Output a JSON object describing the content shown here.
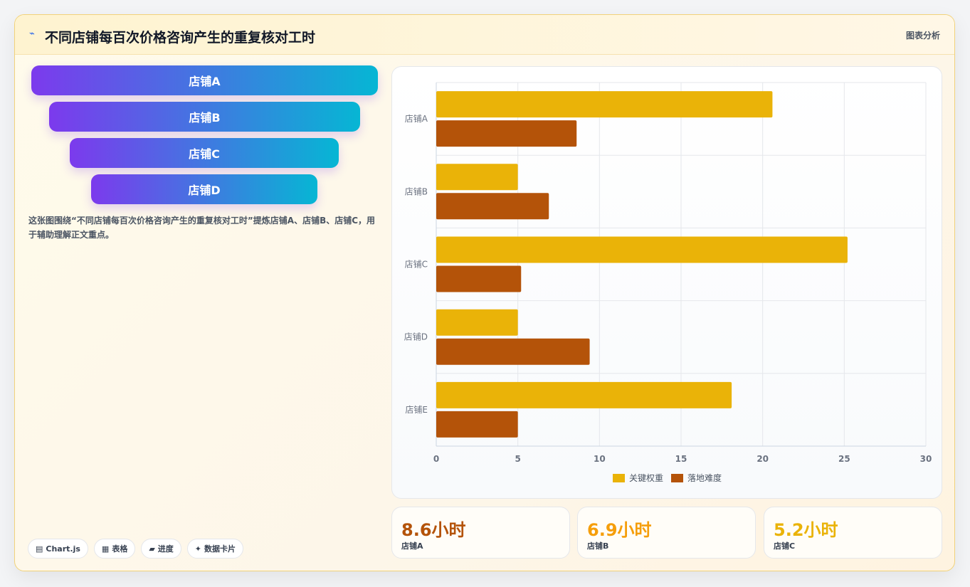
{
  "header": {
    "title": "不同店铺每百次价格咨询产生的重复核对工时",
    "tag": "图表分析",
    "icon": "trend-line-icon"
  },
  "funnel": {
    "stages": [
      "店铺A",
      "店铺B",
      "店铺C",
      "店铺D"
    ]
  },
  "description": "这张图围绕“不同店铺每百次价格咨询产生的重复核对工时”提炼店铺A、店铺B、店铺C，用于辅助理解正文重点。",
  "chips": [
    {
      "icon": "chart-icon",
      "glyph": "▤",
      "label": "Chart.js"
    },
    {
      "icon": "table-icon",
      "glyph": "▦",
      "label": "表格"
    },
    {
      "icon": "progress-icon",
      "glyph": "▰",
      "label": "进度"
    },
    {
      "icon": "sparkle-icon",
      "glyph": "✦",
      "label": "数据卡片"
    }
  ],
  "kpis": [
    {
      "value": "8.6小时",
      "label": "店铺A",
      "color": "#b45309"
    },
    {
      "value": "6.9小时",
      "label": "店铺B",
      "color": "#f59e0b"
    },
    {
      "value": "5.2小时",
      "label": "店铺C",
      "color": "#eab308"
    }
  ],
  "chart_data": {
    "type": "bar",
    "orientation": "horizontal",
    "categories": [
      "店铺A",
      "店铺B",
      "店铺C",
      "店铺D",
      "店铺E"
    ],
    "series": [
      {
        "name": "关键权重",
        "color": "#eab308",
        "values": [
          20.6,
          5.0,
          25.2,
          5.0,
          18.1
        ]
      },
      {
        "name": "落地难度",
        "color": "#b45309",
        "values": [
          8.6,
          6.9,
          5.2,
          9.4,
          5.0
        ]
      }
    ],
    "xlim": [
      0,
      30
    ],
    "xticks": [
      0,
      5,
      10,
      15,
      20,
      25,
      30
    ],
    "grid": true,
    "legend": "bottom"
  }
}
